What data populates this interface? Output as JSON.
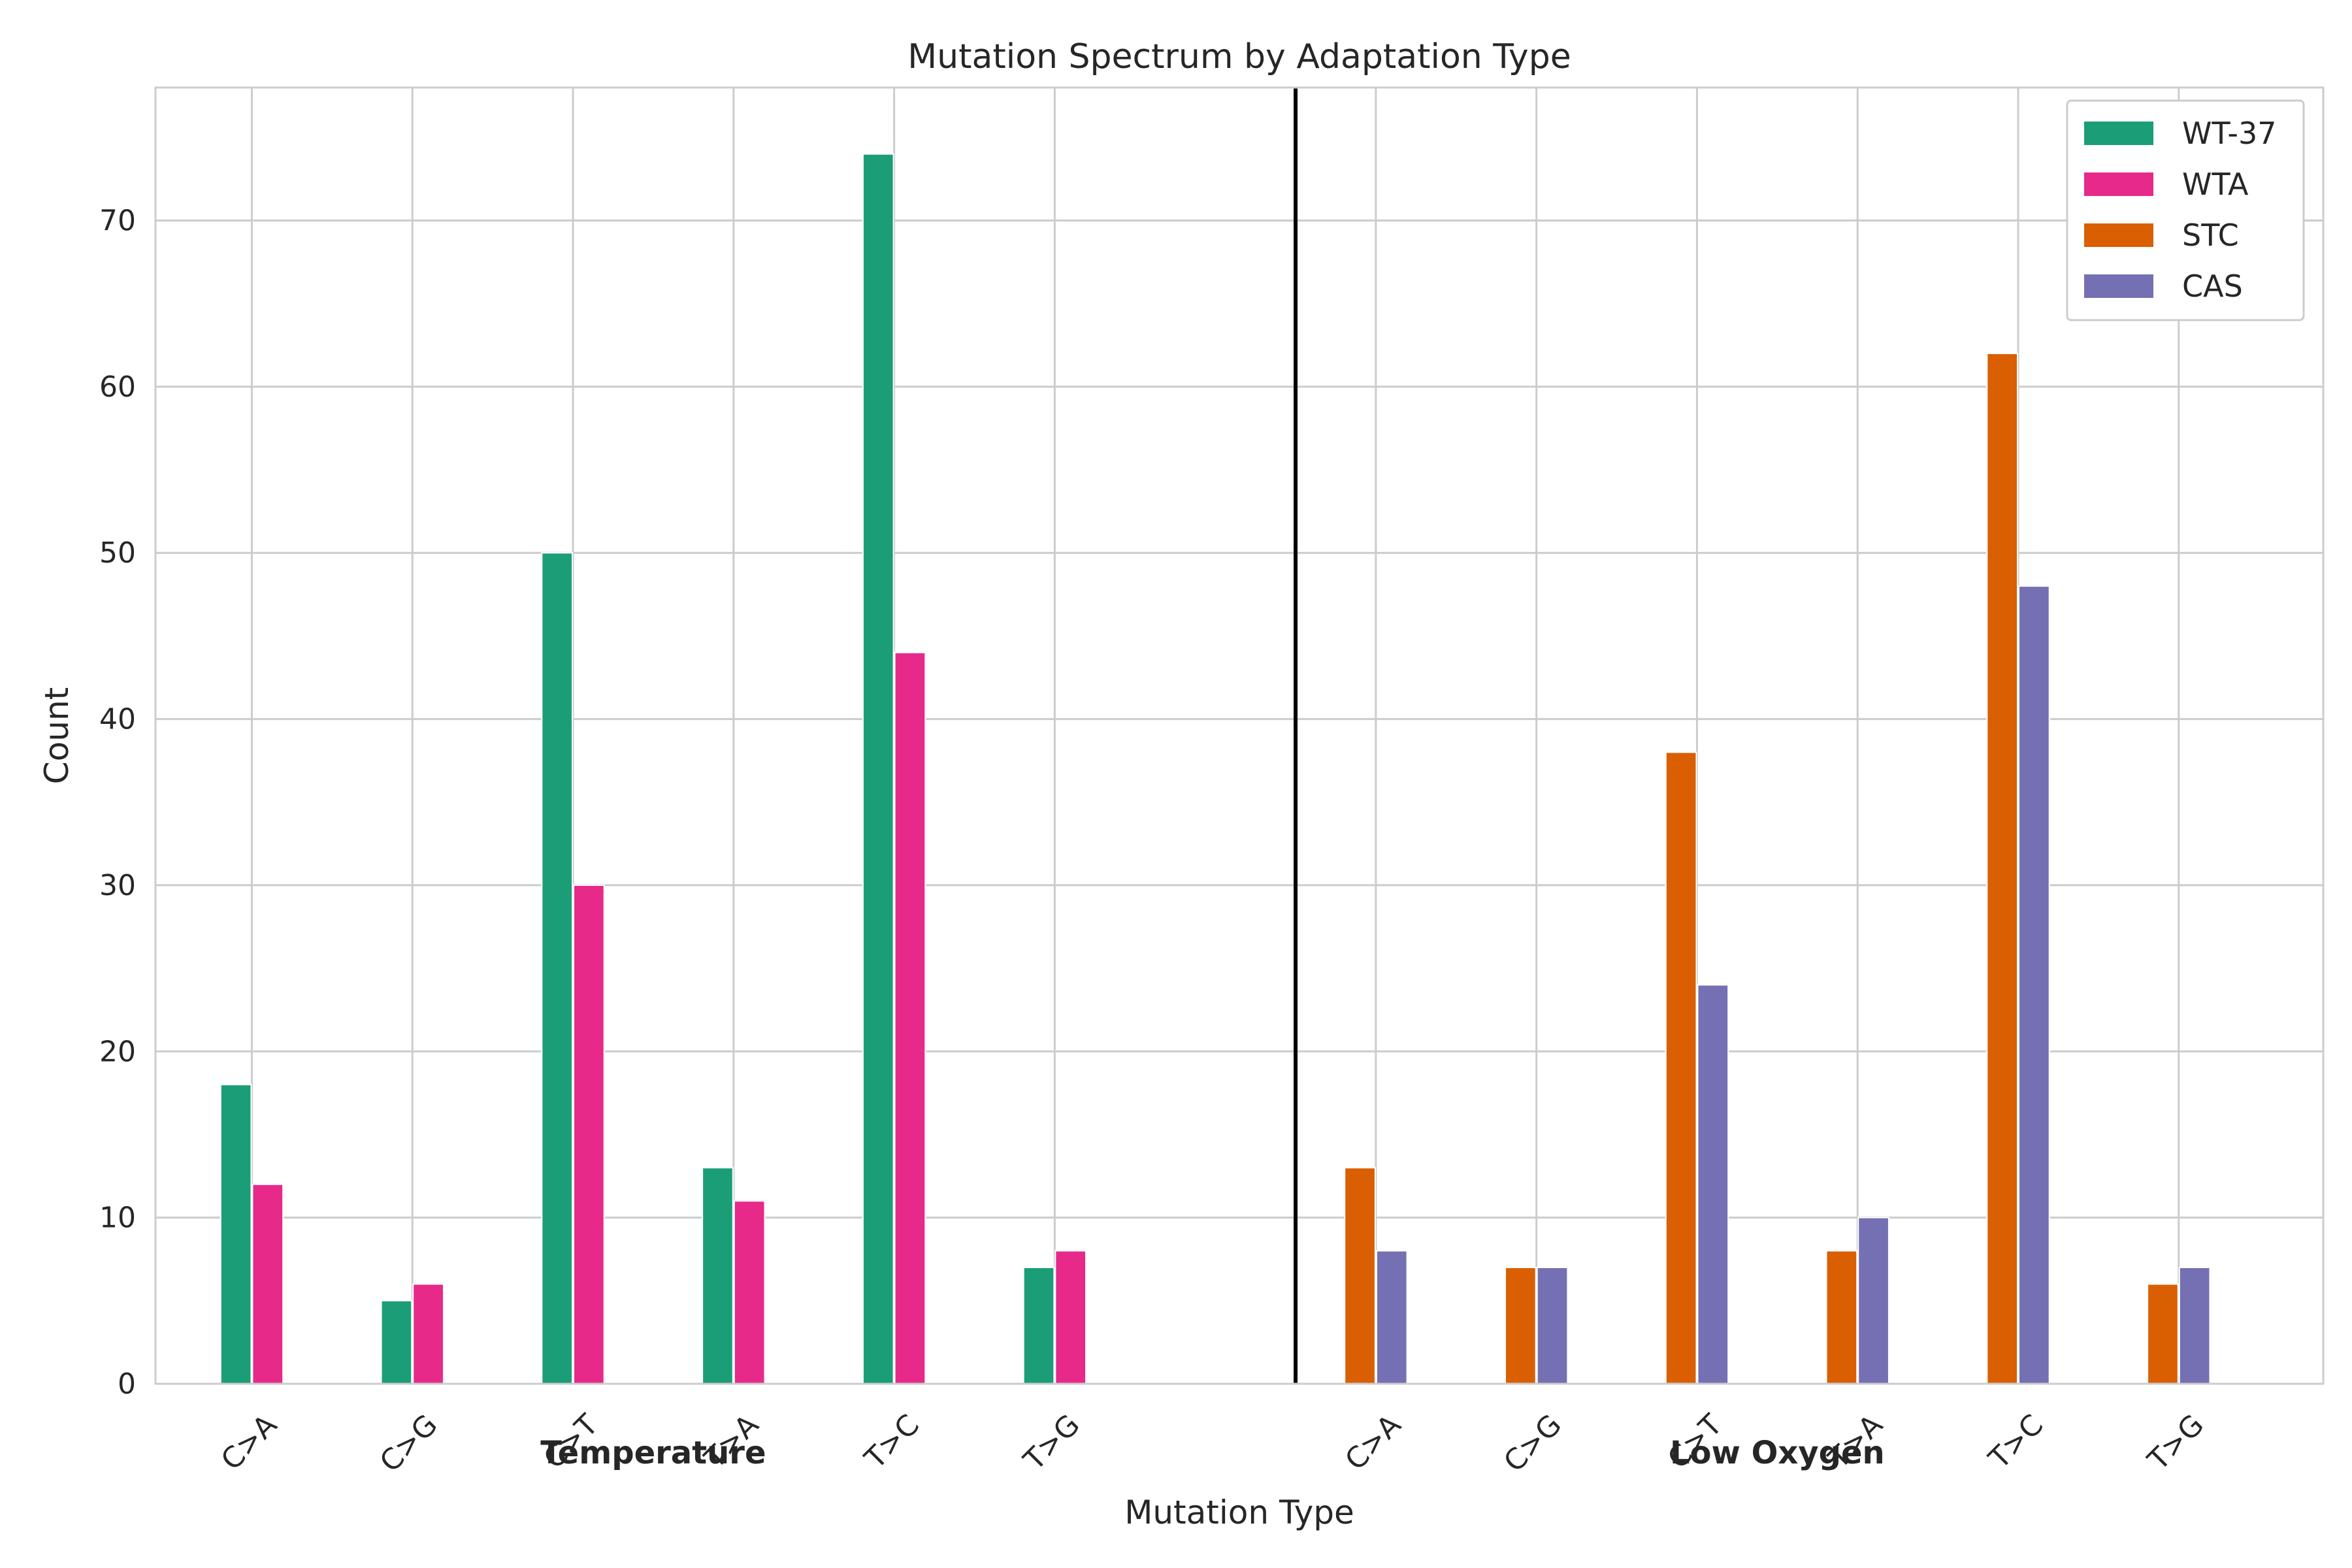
{
  "chart_data": {
    "type": "bar",
    "title": "Mutation Spectrum by Adaptation Type",
    "xlabel": "Mutation Type",
    "ylabel": "Count",
    "ylim": [
      0,
      78
    ],
    "yticks": [
      0,
      10,
      20,
      30,
      40,
      50,
      60,
      70
    ],
    "grid": true,
    "legend_position": "top-right",
    "groups": [
      {
        "name": "Temperature",
        "categories": [
          "C>A",
          "C>G",
          "C>T",
          "T>A",
          "T>C",
          "T>G"
        ],
        "series": [
          {
            "name": "WT-37",
            "color": "#1b9e77",
            "values": [
              18,
              5,
              50,
              13,
              74,
              7
            ]
          },
          {
            "name": "WTA",
            "color": "#e7298a",
            "values": [
              12,
              6,
              30,
              11,
              44,
              8
            ]
          }
        ]
      },
      {
        "name": "Low Oxygen",
        "categories": [
          "C>A",
          "C>G",
          "C>T",
          "T>A",
          "T>C",
          "T>G"
        ],
        "series": [
          {
            "name": "STC",
            "color": "#d95f02",
            "values": [
              13,
              7,
              38,
              8,
              62,
              6
            ]
          },
          {
            "name": "CAS",
            "color": "#7570b3",
            "values": [
              8,
              7,
              24,
              10,
              48,
              7
            ]
          }
        ]
      }
    ],
    "legend": [
      {
        "name": "WT-37",
        "color": "#1b9e77"
      },
      {
        "name": "WTA",
        "color": "#e7298a"
      },
      {
        "name": "STC",
        "color": "#d95f02"
      },
      {
        "name": "CAS",
        "color": "#7570b3"
      }
    ]
  }
}
